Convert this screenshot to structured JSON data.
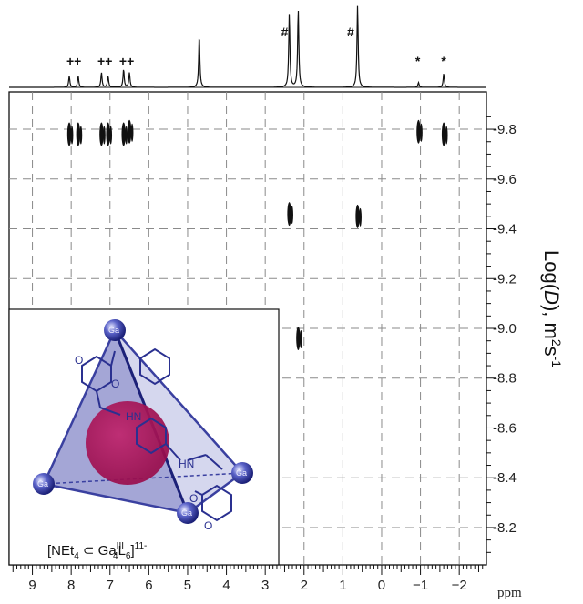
{
  "chart_data": {
    "type": "scatter",
    "title": "",
    "xlabel": "ppm",
    "ylabel": "Log(D), m2s-1",
    "ylabel_parts": {
      "pre": "Log(",
      "italic": "D",
      "post": "), m",
      "sup1": "2",
      "mid": "s",
      "sup2": "-1"
    },
    "xlim": [
      9.6,
      -2.7
    ],
    "ylim": [
      8.05,
      9.95
    ],
    "x_ticks": [
      9,
      8,
      7,
      6,
      5,
      4,
      3,
      2,
      1,
      0,
      -1,
      -2
    ],
    "x_tick_labels": [
      "9",
      "8",
      "7",
      "6",
      "5",
      "4",
      "3",
      "2",
      "1",
      "0",
      "−1",
      "−2"
    ],
    "y_ticks": [
      9.8,
      9.6,
      9.4,
      9.2,
      9.0,
      8.8,
      8.6,
      8.4,
      8.2
    ],
    "y_tick_labels": [
      "-9.8",
      "-9.6",
      "-9.4",
      "-9.2",
      "-9.0",
      "-8.8",
      "-8.6",
      "-8.4",
      "-8.2"
    ],
    "grid": true,
    "spectrum_peaks": [
      {
        "ppm": 8.05,
        "h": 0.14
      },
      {
        "ppm": 7.82,
        "h": 0.14
      },
      {
        "ppm": 7.22,
        "h": 0.18
      },
      {
        "ppm": 7.05,
        "h": 0.14
      },
      {
        "ppm": 6.65,
        "h": 0.22
      },
      {
        "ppm": 6.5,
        "h": 0.18
      },
      {
        "ppm": 4.7,
        "h": 0.64
      },
      {
        "ppm": 2.38,
        "h": 0.9
      },
      {
        "ppm": 2.15,
        "h": 0.95
      },
      {
        "ppm": 0.62,
        "h": 1.0
      },
      {
        "ppm": -0.95,
        "h": 0.06
      },
      {
        "ppm": -1.6,
        "h": 0.17
      }
    ],
    "peak_markers": [
      {
        "label": "++",
        "ppm": 7.93
      },
      {
        "label": "++",
        "ppm": 7.13
      },
      {
        "label": "++",
        "ppm": 6.57
      },
      {
        "label": "#",
        "ppm": 2.5
      },
      {
        "label": "#",
        "ppm": 0.8
      },
      {
        "label": "*",
        "ppm": -0.93
      },
      {
        "label": "*",
        "ppm": -1.6
      }
    ],
    "series": [
      {
        "name": "",
        "points": [
          {
            "x": 8.05,
            "y": 9.78
          },
          {
            "x": 7.82,
            "y": 9.78
          },
          {
            "x": 7.22,
            "y": 9.78
          },
          {
            "x": 7.05,
            "y": 9.78
          },
          {
            "x": 6.65,
            "y": 9.78
          },
          {
            "x": 6.5,
            "y": 9.79
          },
          {
            "x": -0.95,
            "y": 9.79
          },
          {
            "x": -1.6,
            "y": 9.78
          }
        ]
      },
      {
        "name": "",
        "points": [
          {
            "x": 2.38,
            "y": 9.46
          },
          {
            "x": 0.62,
            "y": 9.45
          }
        ]
      },
      {
        "name": "",
        "points": [
          {
            "x": 2.15,
            "y": 8.96
          }
        ]
      }
    ],
    "inset": {
      "caption_parts": {
        "pre": "[NEt",
        "sub1": "4",
        "mid": " ⊂ Ga",
        "sup": "III",
        "sub2": "4",
        "l": "L",
        "sub3": "6",
        "post": "]",
        "charge": "11-"
      },
      "labels": {
        "ga": "Ga",
        "o": "O",
        "hn": "HN"
      }
    }
  }
}
